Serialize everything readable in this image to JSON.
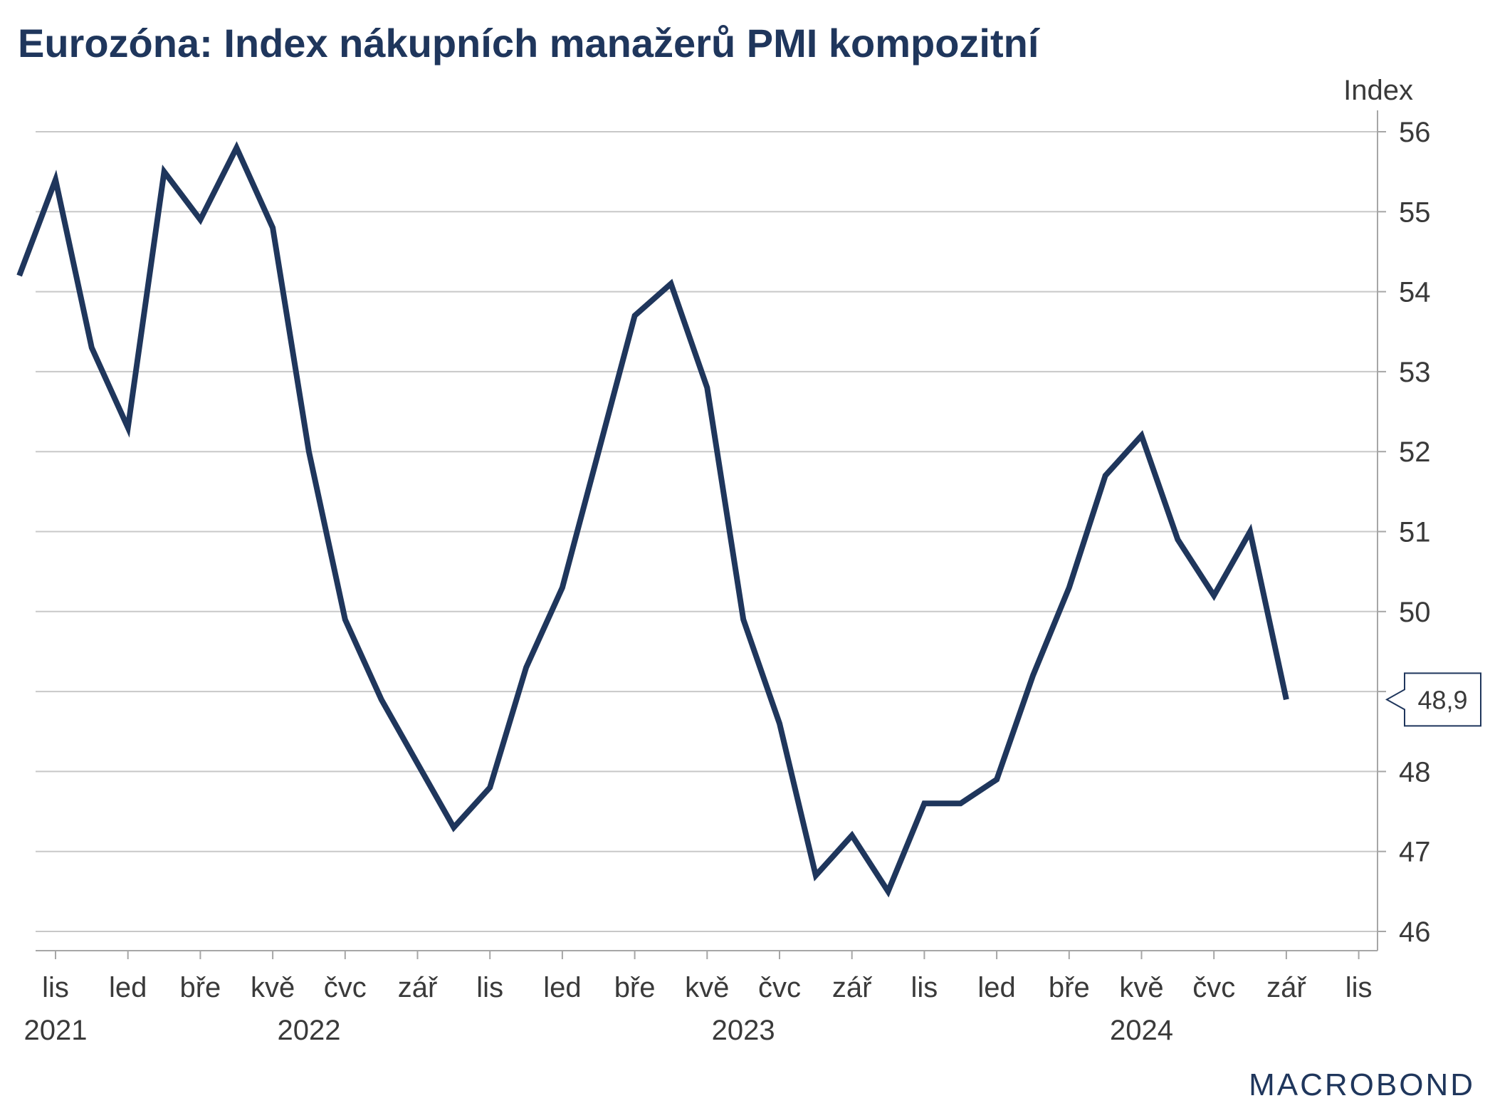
{
  "chart_data": {
    "type": "line",
    "title": "Eurozóna: Index nákupních manažerů PMI kompozitní",
    "y_unit_label": "Index",
    "ylim": [
      46,
      56
    ],
    "y_ticks": [
      "56",
      "55",
      "54",
      "53",
      "52",
      "51",
      "50",
      "48",
      "47",
      "46"
    ],
    "y_tick_values": [
      56,
      55,
      54,
      53,
      52,
      51,
      50,
      48,
      47,
      46
    ],
    "x_ticks": [
      {
        "label": "lis",
        "date": "2021-11"
      },
      {
        "label": "led",
        "date": "2022-01"
      },
      {
        "label": "bře",
        "date": "2022-03"
      },
      {
        "label": "kvě",
        "date": "2022-05"
      },
      {
        "label": "čvc",
        "date": "2022-07"
      },
      {
        "label": "zář",
        "date": "2022-09"
      },
      {
        "label": "lis",
        "date": "2022-11"
      },
      {
        "label": "led",
        "date": "2023-01"
      },
      {
        "label": "bře",
        "date": "2023-03"
      },
      {
        "label": "kvě",
        "date": "2023-05"
      },
      {
        "label": "čvc",
        "date": "2023-07"
      },
      {
        "label": "zář",
        "date": "2023-09"
      },
      {
        "label": "lis",
        "date": "2023-11"
      },
      {
        "label": "led",
        "date": "2024-01"
      },
      {
        "label": "bře",
        "date": "2024-03"
      },
      {
        "label": "kvě",
        "date": "2024-05"
      },
      {
        "label": "čvc",
        "date": "2024-07"
      },
      {
        "label": "zář",
        "date": "2024-09"
      },
      {
        "label": "lis",
        "date": "2024-11"
      }
    ],
    "year_labels": [
      {
        "label": "2021",
        "date": "2021-11"
      },
      {
        "label": "2022",
        "date": "2022-06"
      },
      {
        "label": "2023",
        "date": "2023-06"
      },
      {
        "label": "2024",
        "date": "2024-05"
      }
    ],
    "series": [
      {
        "color": "#1f365c",
        "x": [
          "2021-10",
          "2021-11",
          "2021-12",
          "2022-01",
          "2022-02",
          "2022-03",
          "2022-04",
          "2022-05",
          "2022-06",
          "2022-07",
          "2022-08",
          "2022-09",
          "2022-10",
          "2022-11",
          "2022-12",
          "2023-01",
          "2023-02",
          "2023-03",
          "2023-04",
          "2023-05",
          "2023-06",
          "2023-07",
          "2023-08",
          "2023-09",
          "2023-10",
          "2023-11",
          "2023-12",
          "2024-01",
          "2024-02",
          "2024-03",
          "2024-04",
          "2024-05",
          "2024-06",
          "2024-07",
          "2024-08",
          "2024-09"
        ],
        "values": [
          54.2,
          55.4,
          53.3,
          52.3,
          55.5,
          54.9,
          55.8,
          54.8,
          52.0,
          49.9,
          48.9,
          48.1,
          47.3,
          47.8,
          49.3,
          50.3,
          52.0,
          53.7,
          54.1,
          52.8,
          49.9,
          48.6,
          46.7,
          47.2,
          46.5,
          47.6,
          47.6,
          47.9,
          49.2,
          50.3,
          51.7,
          52.2,
          50.9,
          50.2,
          51.0,
          48.9
        ]
      }
    ],
    "last_value_label": "48,9",
    "grid": true,
    "y_axis_side": "right"
  },
  "branding": {
    "logo_text": "MACROBOND",
    "color": "#1f365c"
  }
}
